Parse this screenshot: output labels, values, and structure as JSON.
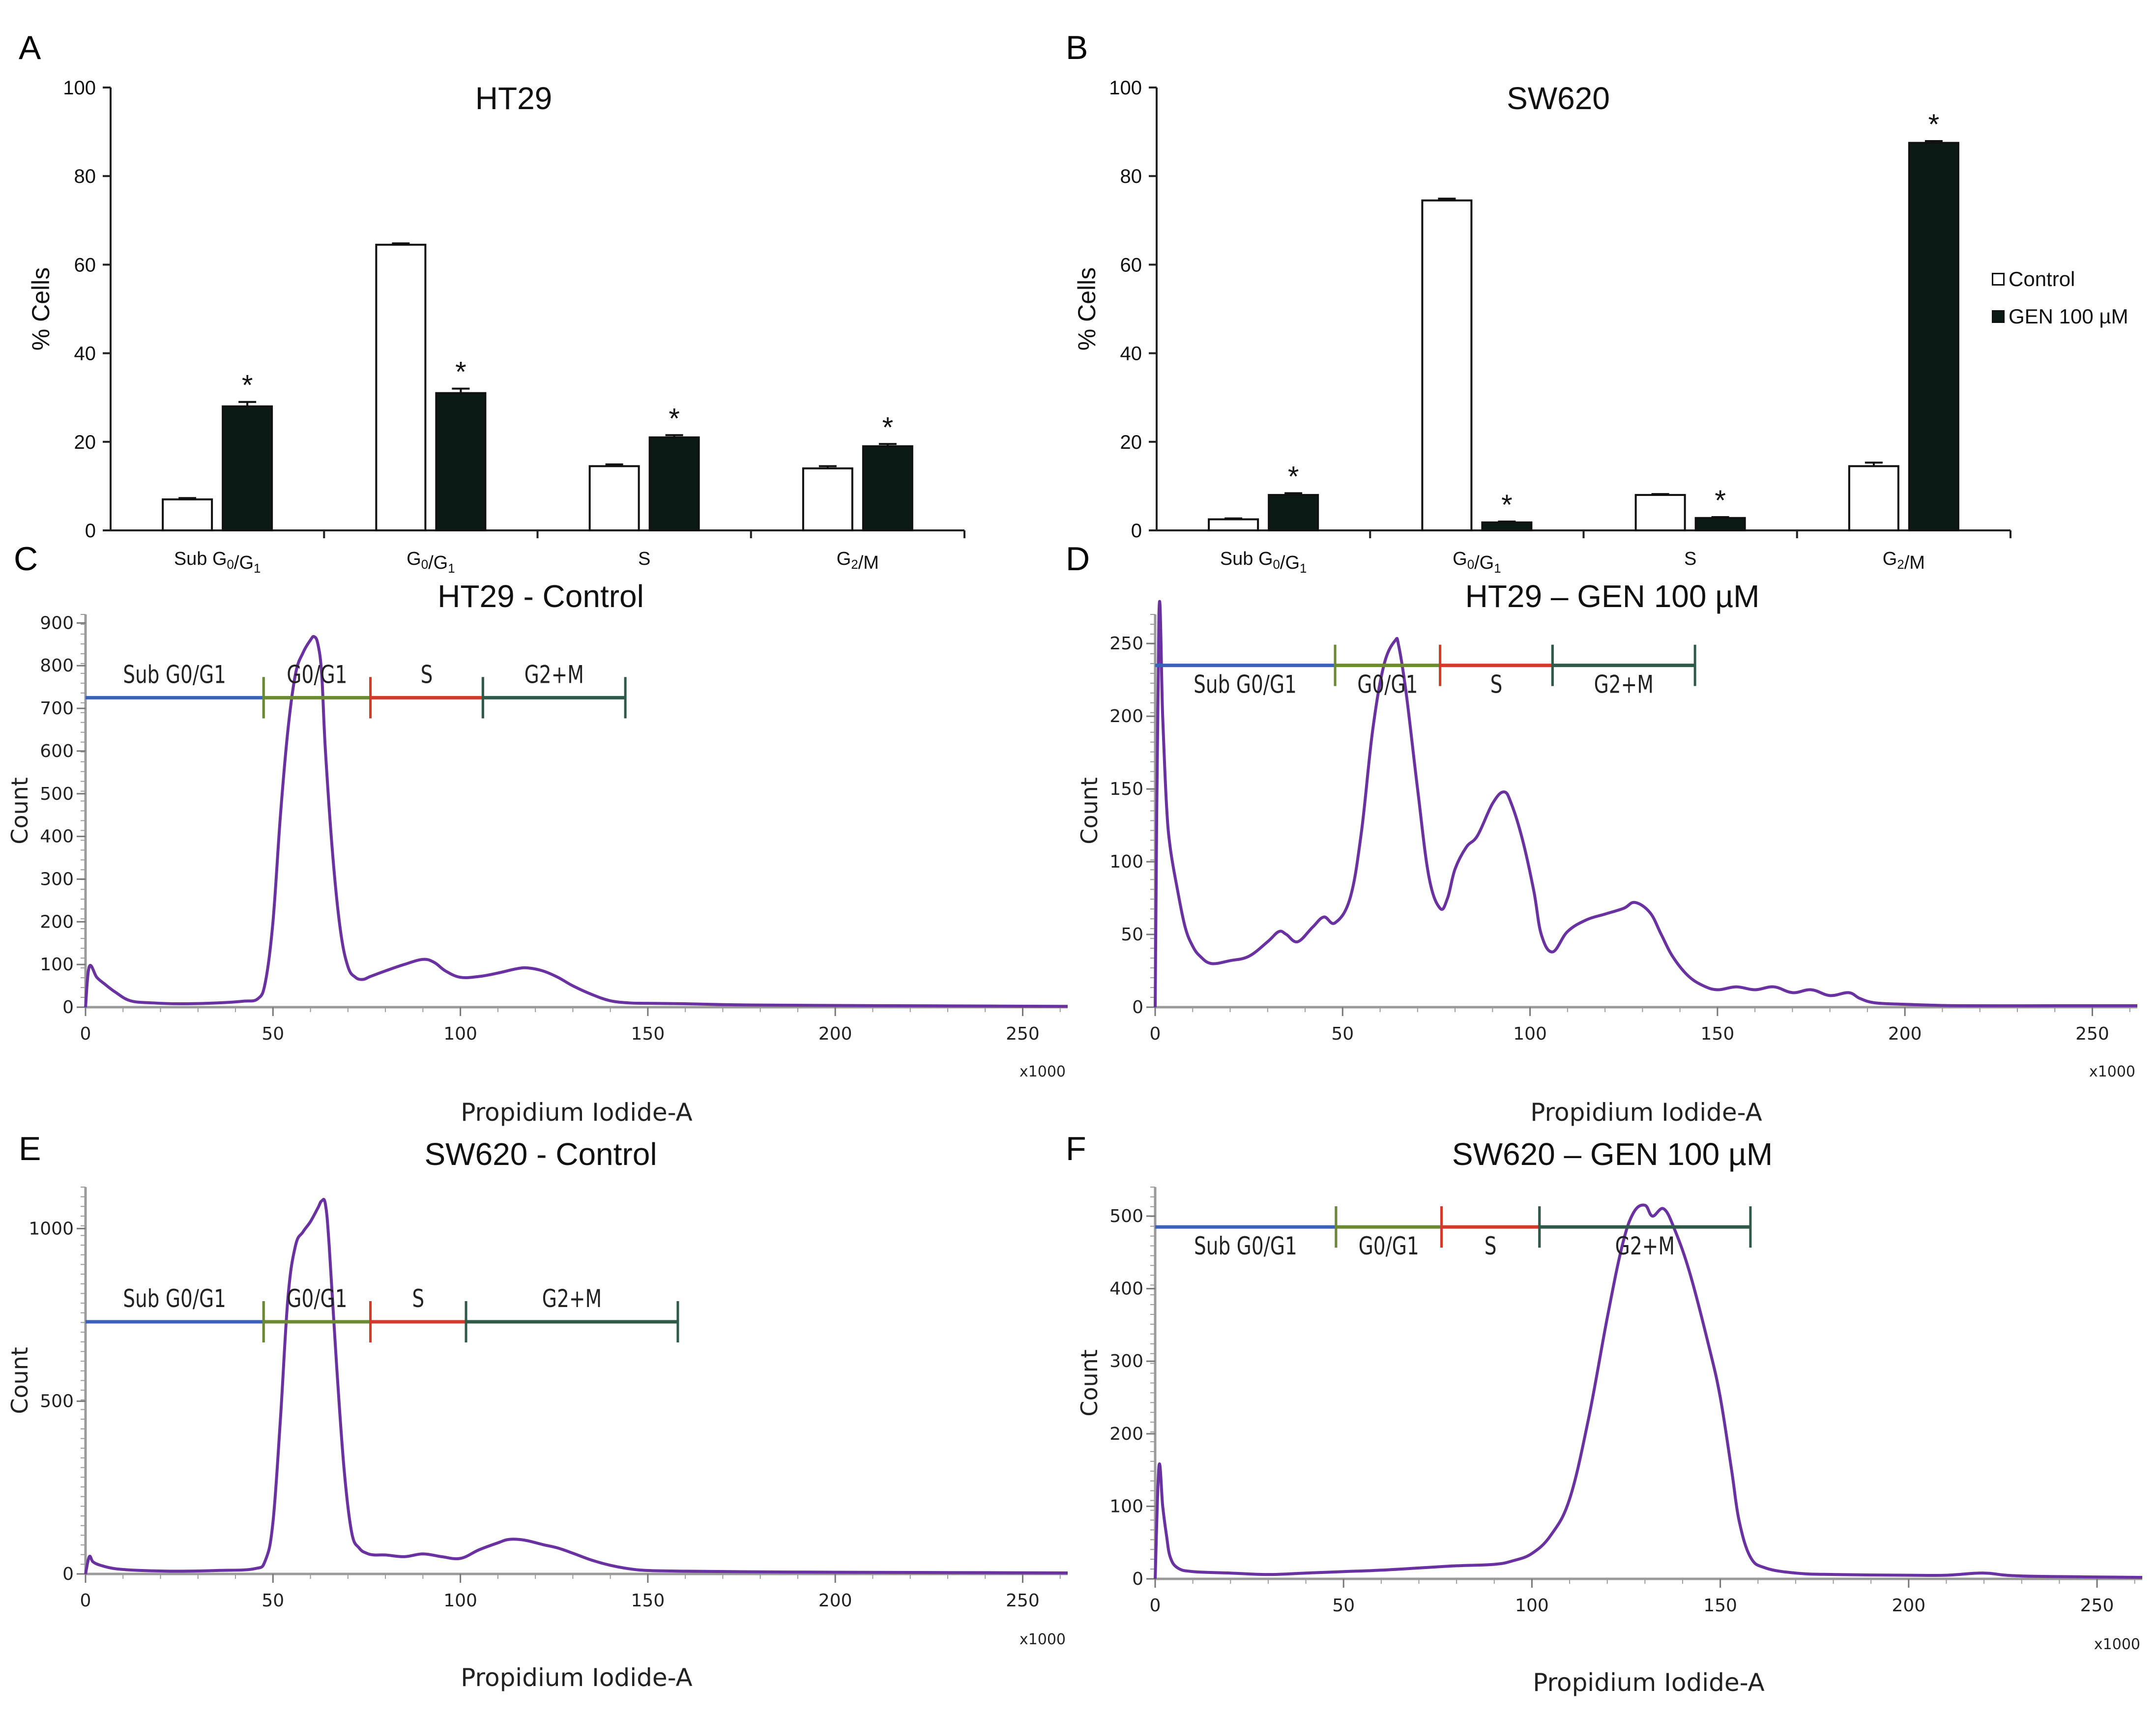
{
  "figure": {
    "legend": {
      "entries": [
        {
          "label": "Control",
          "color": "#ffffff"
        },
        {
          "label": "GEN 100 µM",
          "color": "#0b1a14"
        }
      ]
    },
    "bar_colors": {
      "control": "#ffffff",
      "gen": "#0b1a14",
      "histogram_line": "#6a32a0"
    }
  },
  "chart_data": [
    {
      "panel": "A",
      "type": "bar",
      "title": "HT29",
      "ylabel": "% Cells",
      "xlabel": "",
      "ylim": [
        0,
        100
      ],
      "yticks": [
        "0",
        "20",
        "40",
        "60",
        "80",
        "100"
      ],
      "categories": [
        "Sub G0/G1",
        "G0/G1",
        "S",
        "G2/M"
      ],
      "series": [
        {
          "name": "Control",
          "values": [
            7,
            64.5,
            14.5,
            14
          ],
          "errors": [
            0.3,
            0.3,
            0.4,
            0.5
          ]
        },
        {
          "name": "GEN 100 µM",
          "values": [
            28,
            31,
            21,
            19
          ],
          "errors": [
            1.0,
            1.0,
            0.5,
            0.5
          ],
          "significance": [
            "*",
            "*",
            "*",
            "*"
          ]
        }
      ]
    },
    {
      "panel": "B",
      "type": "bar",
      "title": "SW620",
      "ylabel": "% Cells",
      "xlabel": "",
      "ylim": [
        0,
        100
      ],
      "yticks": [
        "0",
        "20",
        "40",
        "60",
        "80",
        "100"
      ],
      "categories": [
        "Sub G0/G1",
        "G0/G1",
        "S",
        "G2/M"
      ],
      "series": [
        {
          "name": "Control",
          "values": [
            2.5,
            74.5,
            8,
            14.5
          ],
          "errors": [
            0.2,
            0.4,
            0.2,
            0.8
          ]
        },
        {
          "name": "GEN 100 µM",
          "values": [
            8,
            1.8,
            2.8,
            87.5
          ],
          "errors": [
            0.4,
            0.2,
            0.2,
            0.4
          ],
          "significance": [
            "*",
            "*",
            "*",
            "*"
          ]
        }
      ]
    },
    {
      "panel": "C",
      "type": "line",
      "title": "HT29 - Control",
      "ylabel": "Count",
      "xlabel": "Propidium Iodide-A",
      "x_unit": "x1000",
      "xlim": [
        0,
        262
      ],
      "ylim": [
        0,
        920
      ],
      "xticks": [
        0,
        50,
        100,
        150,
        200,
        250
      ],
      "yticks": [
        0,
        100,
        200,
        300,
        400,
        500,
        600,
        700,
        800,
        900
      ],
      "gates": [
        {
          "label": "Sub G0/G1",
          "start": 0,
          "end": 47.5,
          "level": 725,
          "color": "#3a62b8"
        },
        {
          "label": "G0/G1",
          "start": 47.5,
          "end": 76,
          "level": 725,
          "color": "#6b8a33"
        },
        {
          "label": "S",
          "start": 76,
          "end": 106,
          "level": 725,
          "color": "#d33a2c"
        },
        {
          "label": "G2+M",
          "start": 106,
          "end": 144,
          "level": 725,
          "color": "#2f5a4a"
        }
      ],
      "x": [
        0,
        1,
        3,
        5,
        8,
        12,
        18,
        25,
        35,
        42,
        46,
        48,
        50,
        52,
        54,
        56,
        58,
        60,
        61,
        62,
        63,
        64,
        66,
        68,
        70,
        72,
        74,
        76,
        80,
        85,
        90,
        93,
        96,
        100,
        105,
        110,
        115,
        118,
        122,
        126,
        130,
        135,
        140,
        145,
        150,
        160,
        170,
        180,
        200,
        230,
        262
      ],
      "y": [
        0,
        95,
        70,
        55,
        35,
        15,
        10,
        8,
        10,
        14,
        20,
        60,
        200,
        450,
        650,
        780,
        830,
        860,
        868,
        850,
        780,
        600,
        350,
        180,
        95,
        70,
        65,
        72,
        85,
        100,
        112,
        105,
        85,
        70,
        72,
        80,
        90,
        92,
        85,
        70,
        50,
        30,
        15,
        10,
        9,
        8,
        6,
        5,
        4,
        3,
        2
      ]
    },
    {
      "panel": "D",
      "type": "line",
      "title": "HT29 – GEN 100 µM",
      "ylabel": "Count",
      "xlabel": "Propidium Iodide-A",
      "x_unit": "x1000",
      "xlim": [
        0,
        262
      ],
      "ylim": [
        0,
        270
      ],
      "xticks": [
        0,
        50,
        100,
        150,
        200,
        250
      ],
      "yticks": [
        0,
        50,
        100,
        150,
        200,
        250
      ],
      "gates": [
        {
          "label": "Sub G0/G1",
          "start": 0,
          "end": 48,
          "level": 235,
          "color": "#3a62b8"
        },
        {
          "label": "G0/G1",
          "start": 48,
          "end": 76,
          "level": 235,
          "color": "#6b8a33"
        },
        {
          "label": "S",
          "start": 76,
          "end": 106,
          "level": 235,
          "color": "#d33a2c"
        },
        {
          "label": "G2+M",
          "start": 106,
          "end": 144,
          "level": 235,
          "color": "#2f5a4a"
        }
      ],
      "x": [
        0,
        1,
        2,
        3,
        4,
        6,
        8,
        10,
        12,
        15,
        20,
        25,
        30,
        33,
        35,
        38,
        42,
        45,
        48,
        52,
        55,
        58,
        61,
        64,
        65,
        67,
        70,
        73,
        76,
        78,
        80,
        83,
        86,
        90,
        93,
        95,
        98,
        101,
        103,
        106,
        110,
        115,
        120,
        125,
        128,
        132,
        135,
        138,
        142,
        146,
        150,
        155,
        160,
        165,
        170,
        175,
        180,
        185,
        188,
        192,
        200,
        215,
        240,
        262
      ],
      "y": [
        0,
        270,
        200,
        140,
        110,
        80,
        55,
        42,
        35,
        30,
        32,
        35,
        45,
        52,
        50,
        45,
        55,
        62,
        58,
        75,
        120,
        190,
        235,
        252,
        248,
        215,
        150,
        90,
        68,
        75,
        95,
        110,
        118,
        140,
        148,
        140,
        115,
        80,
        50,
        38,
        52,
        60,
        64,
        68,
        72,
        65,
        50,
        35,
        22,
        15,
        12,
        14,
        12,
        14,
        10,
        12,
        8,
        10,
        6,
        3,
        2,
        1,
        1,
        1
      ]
    },
    {
      "panel": "E",
      "type": "line",
      "title": "SW620 - Control",
      "ylabel": "Count",
      "xlabel": "Propidium Iodide-A",
      "x_unit": "x1000",
      "xlim": [
        0,
        262
      ],
      "ylim": [
        0,
        1120
      ],
      "xticks": [
        0,
        50,
        100,
        150,
        200,
        250
      ],
      "yticks": [
        0,
        500,
        1000
      ],
      "gates": [
        {
          "label": "Sub G0/G1",
          "start": 0,
          "end": 47.5,
          "level": 730,
          "color": "#3a62b8"
        },
        {
          "label": "G0/G1",
          "start": 47.5,
          "end": 76,
          "level": 730,
          "color": "#6b8a33"
        },
        {
          "label": "S",
          "start": 76,
          "end": 101.5,
          "level": 730,
          "color": "#d33a2c"
        },
        {
          "label": "G2+M",
          "start": 101.5,
          "end": 158,
          "level": 730,
          "color": "#2f5a4a"
        }
      ],
      "x": [
        0,
        1,
        2,
        4,
        8,
        15,
        25,
        35,
        45,
        48,
        50,
        52,
        54,
        56,
        58,
        60,
        62,
        63,
        64,
        65,
        67,
        69,
        71,
        73,
        75,
        77,
        80,
        85,
        90,
        95,
        100,
        105,
        110,
        113,
        117,
        122,
        126,
        130,
        135,
        140,
        145,
        150,
        160,
        180,
        200,
        230,
        262
      ],
      "y": [
        0,
        50,
        35,
        25,
        15,
        10,
        8,
        10,
        15,
        40,
        150,
        450,
        800,
        950,
        990,
        1020,
        1060,
        1080,
        1070,
        950,
        600,
        300,
        120,
        75,
        60,
        55,
        55,
        50,
        58,
        50,
        45,
        70,
        90,
        100,
        98,
        85,
        75,
        60,
        40,
        25,
        15,
        10,
        8,
        6,
        5,
        4,
        3
      ]
    },
    {
      "panel": "F",
      "type": "line",
      "title": "SW620 – GEN 100 µM",
      "ylabel": "Count",
      "xlabel": "Propidium Iodide-A",
      "x_unit": "x1000",
      "xlim": [
        0,
        262
      ],
      "ylim": [
        0,
        540
      ],
      "xticks": [
        0,
        50,
        100,
        150,
        200,
        250
      ],
      "yticks": [
        0,
        100,
        200,
        300,
        400,
        500
      ],
      "gates": [
        {
          "label": "Sub G0/G1",
          "start": 0,
          "end": 48,
          "level": 485,
          "color": "#3a62b8"
        },
        {
          "label": "G0/G1",
          "start": 48,
          "end": 76,
          "level": 485,
          "color": "#6b8a33"
        },
        {
          "label": "S",
          "start": 76,
          "end": 102,
          "level": 485,
          "color": "#d33a2c"
        },
        {
          "label": "G2+M",
          "start": 102,
          "end": 158,
          "level": 485,
          "color": "#2f5a4a"
        }
      ],
      "x": [
        0,
        1,
        2,
        3,
        4,
        6,
        10,
        20,
        30,
        40,
        50,
        60,
        70,
        80,
        90,
        95,
        100,
        105,
        110,
        115,
        120,
        124,
        127,
        130,
        132,
        135,
        138,
        142,
        147,
        150,
        153,
        155,
        158,
        162,
        170,
        180,
        200,
        210,
        220,
        230,
        262
      ],
      "y": [
        0,
        155,
        100,
        60,
        30,
        15,
        10,
        8,
        6,
        8,
        10,
        12,
        15,
        18,
        20,
        25,
        35,
        60,
        110,
        220,
        360,
        460,
        505,
        515,
        500,
        510,
        480,
        420,
        320,
        250,
        150,
        80,
        30,
        15,
        8,
        6,
        5,
        5,
        8,
        4,
        2
      ]
    }
  ],
  "panels": {
    "A": {
      "letter": "A"
    },
    "B": {
      "letter": "B"
    },
    "C": {
      "letter": "C"
    },
    "D": {
      "letter": "D"
    },
    "E": {
      "letter": "E"
    },
    "F": {
      "letter": "F"
    }
  }
}
